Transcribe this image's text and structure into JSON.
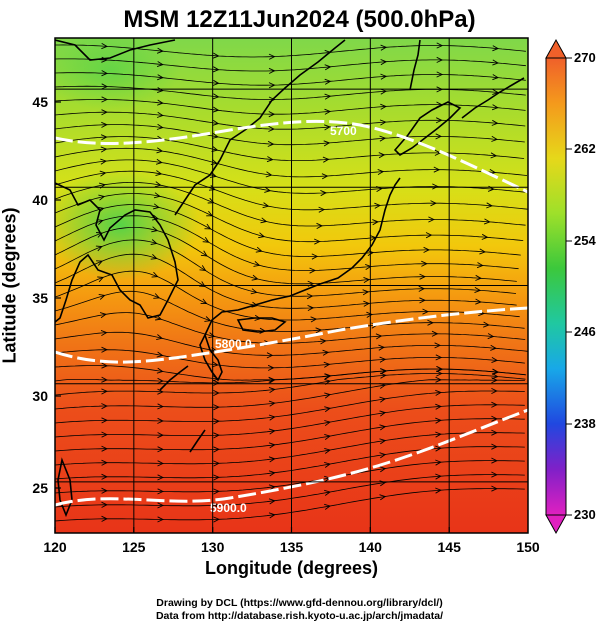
{
  "title": "MSM 12Z11Jun2024 (500.0hPa)",
  "xaxis": {
    "label": "Longitude (degrees)",
    "ticks": [
      "120",
      "125",
      "130",
      "135",
      "140",
      "145",
      "150"
    ],
    "range": [
      120,
      150
    ]
  },
  "yaxis": {
    "label": "Latitude  (degrees)",
    "ticks": [
      "25",
      "30",
      "35",
      "40",
      "45"
    ],
    "range": [
      22.4,
      47.6
    ]
  },
  "colorbar": {
    "labels": [
      "270",
      "262",
      "254",
      "246",
      "238",
      "230"
    ],
    "min": 230,
    "max": 270
  },
  "contours": [
    {
      "label": "5700"
    },
    {
      "label": "5800.0"
    },
    {
      "label": "5900.0"
    }
  ],
  "credits": {
    "line1": "Drawing by DCL (https://www.gfd-dennou.org/library/dcl/)",
    "line2": "Data from http://database.rish.kyoto-u.ac.jp/arch/jmadata/"
  }
}
